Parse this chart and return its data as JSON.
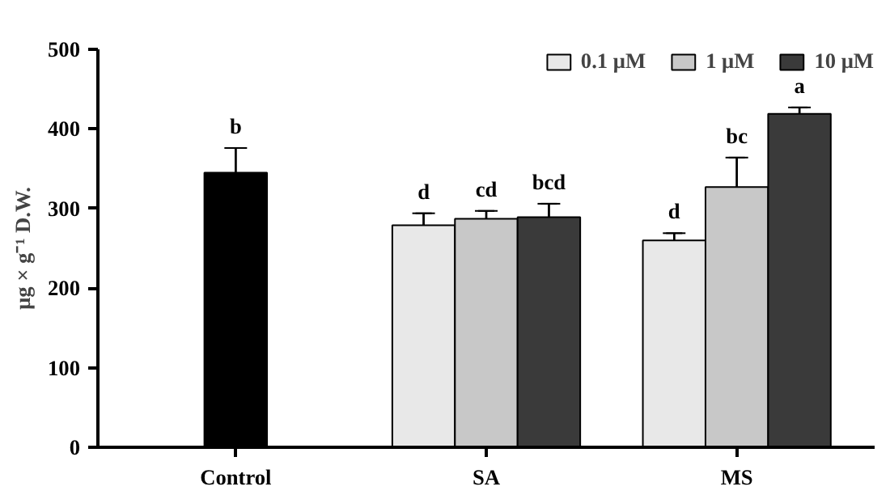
{
  "chart_data": {
    "type": "bar",
    "ylabel": "μg × g⁻¹ D.W.",
    "categories": [
      "Control",
      "SA",
      "MS"
    ],
    "series": [
      {
        "color": "#000000",
        "values": [
          345,
          null,
          null
        ],
        "errors": [
          31,
          null,
          null
        ],
        "value_labels": [
          "b",
          null,
          null
        ]
      },
      {
        "name": "0.1 μM",
        "color": "#e8e8e8",
        "values": [
          null,
          279,
          260
        ],
        "errors": [
          null,
          15,
          9
        ],
        "value_labels": [
          null,
          "d",
          "d"
        ]
      },
      {
        "name": "1 μM",
        "color": "#c8c8c8",
        "values": [
          null,
          287,
          327
        ],
        "errors": [
          null,
          10,
          37
        ],
        "value_labels": [
          null,
          "cd",
          "bc"
        ]
      },
      {
        "name": "10 μM",
        "color": "#3a3a3a",
        "values": [
          null,
          289,
          419
        ],
        "errors": [
          null,
          17,
          8
        ],
        "value_labels": [
          null,
          "bcd",
          "a"
        ]
      }
    ],
    "ylim": [
      0,
      500
    ],
    "yticks": [
      0,
      100,
      200,
      300,
      400,
      500
    ],
    "grid": false,
    "legend": "top right"
  }
}
